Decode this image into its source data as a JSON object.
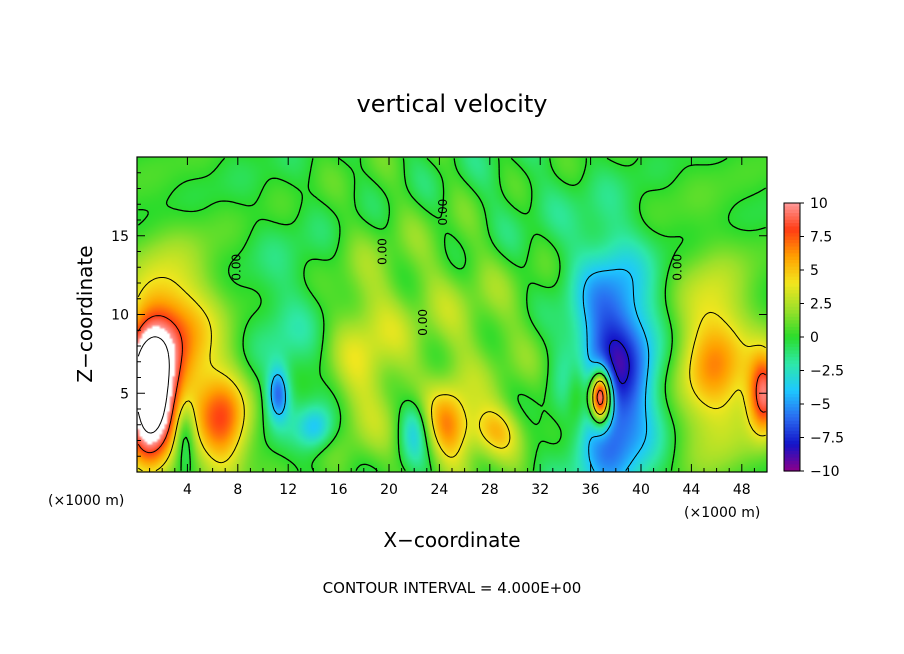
{
  "chart_data": {
    "type": "heatmap",
    "title": "vertical velocity",
    "xlabel": "X−coordinate",
    "ylabel": "Z−coordinate",
    "x_unit_label": "(×1000 m)",
    "z_unit_label": "(×1000 m)",
    "footer": "CONTOUR INTERVAL = 4.000E+00",
    "xlim": [
      0,
      50
    ],
    "ylim": [
      0,
      20
    ],
    "x_ticks": [
      4,
      8,
      12,
      16,
      20,
      24,
      28,
      32,
      36,
      40,
      44,
      48
    ],
    "y_ticks": [
      5,
      10,
      15
    ],
    "contour_label": "0.00",
    "colorbar": {
      "range": [
        -10,
        10
      ],
      "ticks": [
        {
          "value": 10,
          "label": "10"
        },
        {
          "value": 7.5,
          "label": "7.5"
        },
        {
          "value": 5,
          "label": "5"
        },
        {
          "value": 2.5,
          "label": "2.5"
        },
        {
          "value": 0,
          "label": "0"
        },
        {
          "value": -2.5,
          "label": "−2.5"
        },
        {
          "value": -5,
          "label": "−5"
        },
        {
          "value": -7.5,
          "label": "−7.5"
        },
        {
          "value": -10,
          "label": "−10"
        }
      ],
      "colors": [
        "#8b008b",
        "#1414c8",
        "#2a6cf0",
        "#1ec8ff",
        "#2ee8a8",
        "#2bdc2b",
        "#9be02a",
        "#f2e61e",
        "#ffa000",
        "#ff3c14",
        "#ff9b9b"
      ]
    },
    "features": [
      {
        "x": 1.0,
        "z": 4.8,
        "sx": 1.4,
        "sz": 3.0,
        "w": 14
      },
      {
        "x": 2.8,
        "z": 8.5,
        "sx": 2.6,
        "sz": 3.6,
        "w": 6.5
      },
      {
        "x": 6.8,
        "z": 3.0,
        "sx": 1.5,
        "sz": 2.4,
        "w": 7
      },
      {
        "x": 3.8,
        "z": 2.5,
        "sx": 0.6,
        "sz": 1.5,
        "w": -4
      },
      {
        "x": 11.2,
        "z": 5.0,
        "sx": 0.6,
        "sz": 1.2,
        "w": -5.5
      },
      {
        "x": 14.2,
        "z": 2.8,
        "sx": 1.0,
        "sz": 1.0,
        "w": -4
      },
      {
        "x": 12.0,
        "z": 9.0,
        "sx": 2.5,
        "sz": 4.0,
        "w": -1.5
      },
      {
        "x": 18.0,
        "z": 7.0,
        "sx": 2.0,
        "sz": 4.0,
        "w": 3.0
      },
      {
        "x": 24.8,
        "z": 3.0,
        "sx": 1.2,
        "sz": 1.8,
        "w": 5.5
      },
      {
        "x": 28.3,
        "z": 2.6,
        "sx": 1.6,
        "sz": 1.2,
        "w": 4.5
      },
      {
        "x": 22.0,
        "z": 2.8,
        "sx": 0.8,
        "sz": 1.4,
        "w": -3.5
      },
      {
        "x": 25.5,
        "z": 10.5,
        "sx": 5.0,
        "sz": 5.0,
        "w": 2.0
      },
      {
        "x": 37.8,
        "z": 6.5,
        "sx": 2.4,
        "sz": 5.5,
        "w": -8.5
      },
      {
        "x": 36.8,
        "z": 4.8,
        "sx": 0.6,
        "sz": 1.2,
        "w": 16
      },
      {
        "x": 35.0,
        "z": 5.0,
        "sx": 0.7,
        "sz": 1.6,
        "w": 4.5
      },
      {
        "x": 45.8,
        "z": 7.0,
        "sx": 2.2,
        "sz": 4.0,
        "w": 6.0
      },
      {
        "x": 49.8,
        "z": 5.0,
        "sx": 0.9,
        "sz": 1.8,
        "w": 9.0
      },
      {
        "x": 31.0,
        "z": 16.0,
        "sx": 6.0,
        "sz": 3.5,
        "w": -1.2
      },
      {
        "x": 38.0,
        "z": 16.0,
        "sx": 4.0,
        "sz": 4.0,
        "w": 1.0
      }
    ]
  }
}
